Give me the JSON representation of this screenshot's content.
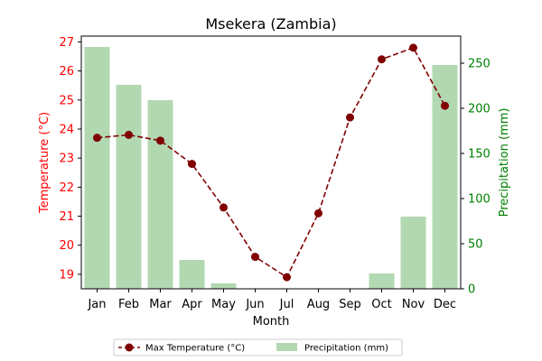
{
  "chart_data": {
    "type": "bar",
    "title": "Msekera (Zambia)",
    "xlabel": "Month",
    "categories": [
      "Jan",
      "Feb",
      "Mar",
      "Apr",
      "May",
      "Jun",
      "Jul",
      "Aug",
      "Sep",
      "Oct",
      "Nov",
      "Dec"
    ],
    "y_left": {
      "label": "Temperature (°C)",
      "color": "#ff0000",
      "range": [
        18.5,
        27.2
      ],
      "ticks": [
        19,
        20,
        21,
        22,
        23,
        24,
        25,
        26,
        27
      ]
    },
    "y_right": {
      "label": "Precipitation (mm)",
      "color": "#008000",
      "range": [
        0,
        280
      ],
      "ticks": [
        0,
        50,
        100,
        150,
        200,
        250
      ]
    },
    "series": [
      {
        "name": "Max Temperature (°C)",
        "type": "line",
        "axis": "left",
        "color": "#800000",
        "style": "dashed",
        "marker": "circle",
        "values": [
          23.7,
          23.8,
          23.6,
          22.8,
          21.3,
          19.6,
          18.9,
          21.1,
          24.4,
          26.4,
          26.8,
          24.8
        ]
      },
      {
        "name": "Precipitation (mm)",
        "type": "bar",
        "axis": "right",
        "color": "#b2d8b2",
        "values": [
          268,
          226,
          209,
          32,
          6,
          0,
          0,
          0,
          0,
          17,
          80,
          248
        ]
      }
    ],
    "legend": {
      "position": "bottom-center",
      "entries": [
        "Max Temperature (°C)",
        "Precipitation (mm)"
      ]
    },
    "grid": false
  }
}
